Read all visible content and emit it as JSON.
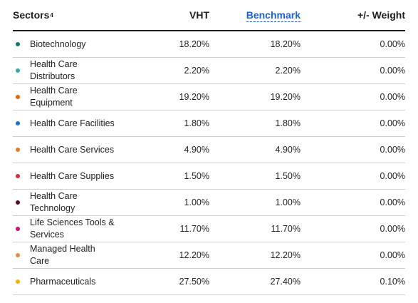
{
  "header": {
    "sectors_label": "Sectors",
    "sectors_footnote": "4",
    "vht_label": "VHT",
    "benchmark_label": "Benchmark",
    "weight_label": "+/- Weight"
  },
  "rows": [
    {
      "sector": "Biotechnology",
      "vht": "18.20%",
      "benchmark": "18.20%",
      "weight": "0.00%",
      "color": "#0b7a6e"
    },
    {
      "sector": "Health Care Distributors",
      "vht": "2.20%",
      "benchmark": "2.20%",
      "weight": "0.00%",
      "color": "#3aa6a8"
    },
    {
      "sector": "Health Care Equipment",
      "vht": "19.20%",
      "benchmark": "19.20%",
      "weight": "0.00%",
      "color": "#e06a10"
    },
    {
      "sector": "Health Care Facilities",
      "vht": "1.80%",
      "benchmark": "1.80%",
      "weight": "0.00%",
      "color": "#1c6fd6"
    },
    {
      "sector": "Health Care Services",
      "vht": "4.90%",
      "benchmark": "4.90%",
      "weight": "0.00%",
      "color": "#ea7a2a"
    },
    {
      "sector": "Health Care Supplies",
      "vht": "1.50%",
      "benchmark": "1.50%",
      "weight": "0.00%",
      "color": "#d62f3c"
    },
    {
      "sector": "Health Care Technology",
      "vht": "1.00%",
      "benchmark": "1.00%",
      "weight": "0.00%",
      "color": "#5e0a22"
    },
    {
      "sector": "Life Sciences Tools & Services",
      "vht": "11.70%",
      "benchmark": "11.70%",
      "weight": "0.00%",
      "color": "#c8147a"
    },
    {
      "sector": "Managed Health Care",
      "vht": "12.20%",
      "benchmark": "12.20%",
      "weight": "0.00%",
      "color": "#f08a3c"
    },
    {
      "sector": "Pharmaceuticals",
      "vht": "27.50%",
      "benchmark": "27.40%",
      "weight": "0.10%",
      "color": "#f4b400"
    }
  ]
}
